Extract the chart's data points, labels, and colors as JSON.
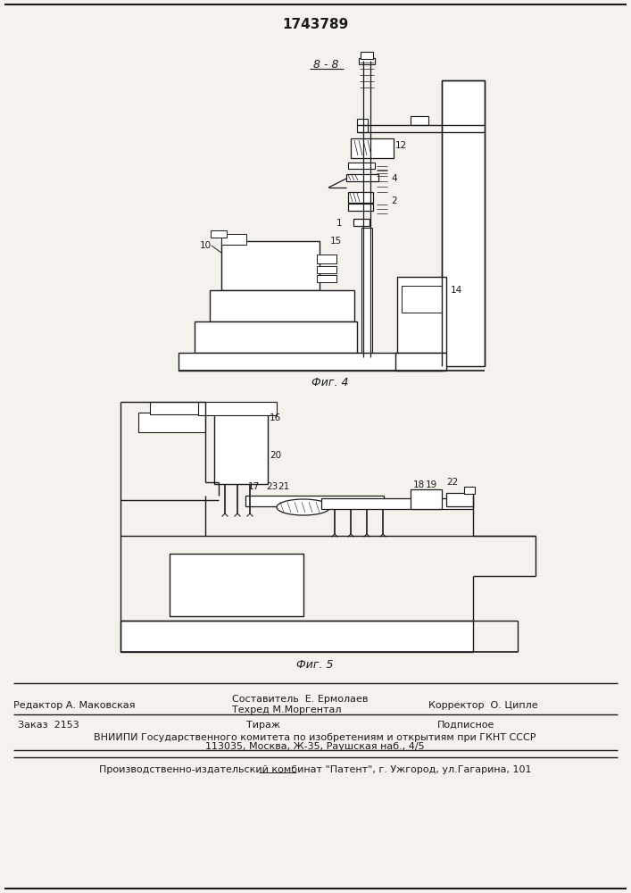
{
  "patent_number": "1743789",
  "fig4_label": "Фиг. 4",
  "fig5_label": "Фиг. 5",
  "section_label": "8 - 8",
  "editor_line": "Редактор А. Маковская",
  "composer_line1": "Составитель  Е. Ермолаев",
  "composer_line2": "Техред М.Моргентал",
  "corrector_line": "Корректор  О. Ципле",
  "order_line": "Заказ  2153",
  "tirage_line": "Тираж",
  "podpisnoe_line": "Подписное",
  "vniiipi_line1": "ВНИИПИ Государственного комитета по изобретениям и открытиям при ГКНТ СССР",
  "vniiipi_line2": "113035, Москва, Ж-35, Раушская наб., 4/5",
  "production_line": "Производственно-издательский комбинат \"Патент\", г. Ужгород, ул.Гагарина, 101",
  "bg_color": "#f5f2ed",
  "line_color": "#1a1a1a",
  "text_color": "#1a1a1a"
}
